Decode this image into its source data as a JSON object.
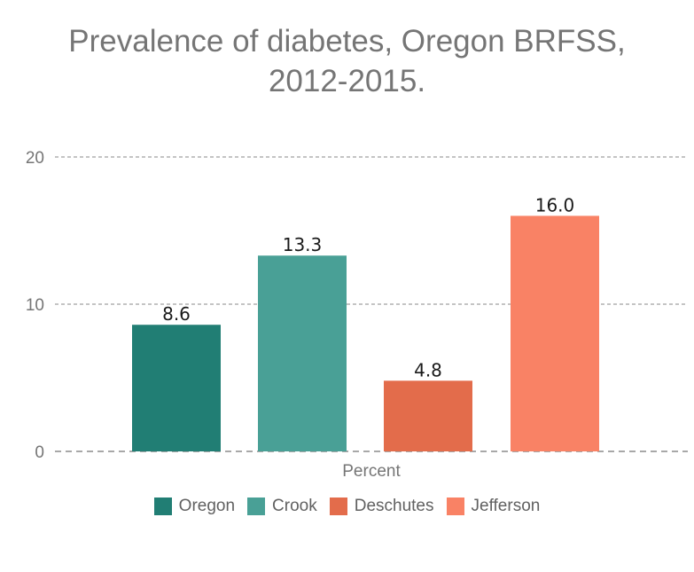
{
  "chart_data": {
    "type": "bar",
    "title": "Prevalence of diabetes, Oregon BRFSS, 2012-2015.",
    "title_lines": [
      "Prevalence of diabetes, Oregon BRFSS,",
      "2012-2015."
    ],
    "xlabel": "Percent",
    "ylabel": "",
    "ylim": [
      0,
      20
    ],
    "yticks": [
      0,
      10,
      20
    ],
    "grid": true,
    "legend_position": "bottom",
    "series": [
      {
        "name": "Oregon",
        "value": 8.6,
        "label": "8.6",
        "color": "#217e74"
      },
      {
        "name": "Crook",
        "value": 13.3,
        "label": "13.3",
        "color": "#49a096"
      },
      {
        "name": "Deschutes",
        "value": 4.8,
        "label": "4.8",
        "color": "#e36c4b"
      },
      {
        "name": "Jefferson",
        "value": 16.0,
        "label": "16.0",
        "color": "#f98265"
      }
    ]
  }
}
